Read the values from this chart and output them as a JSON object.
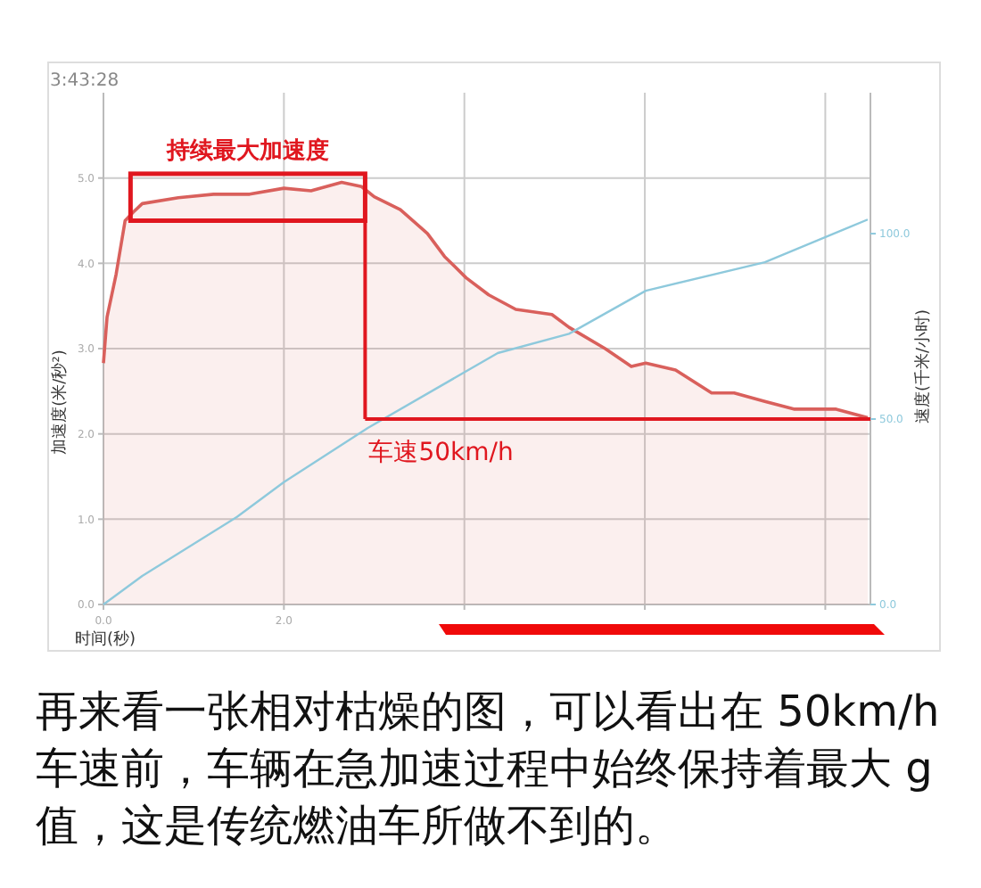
{
  "chart_data": {
    "type": "area",
    "xlabel": "时间(秒)",
    "ylabel": "加速度(米/秒²)",
    "y2label": "速度(千米/小时)",
    "xlim": [
      0,
      8.5
    ],
    "xticks": [
      {
        "value": 0,
        "label": "0.0"
      },
      {
        "value": 2,
        "label": "2.0"
      },
      {
        "value": 4,
        "label": null
      },
      {
        "value": 6,
        "label": null
      },
      {
        "value": 8,
        "label": null
      }
    ],
    "ylim": [
      0,
      6
    ],
    "yticks": [
      {
        "value": 0,
        "label": "0.0"
      },
      {
        "value": 1,
        "label": "1.0"
      },
      {
        "value": 2,
        "label": "2.0"
      },
      {
        "value": 3,
        "label": "3.0"
      },
      {
        "value": 4,
        "label": "4.0"
      },
      {
        "value": 5,
        "label": "5.0"
      }
    ],
    "y2lim": [
      0,
      138
    ],
    "y2ticks": [
      {
        "value": 0,
        "label": "0.0"
      },
      {
        "value": 50,
        "label": "50.0"
      },
      {
        "value": 100,
        "label": "100.0"
      }
    ],
    "grid": true,
    "series": [
      {
        "color": "#d9605c",
        "x": [
          0,
          0.04,
          0.14,
          0.24,
          0.33,
          0.43,
          0.83,
          1.22,
          1.62,
          2.0,
          2.3,
          2.64,
          2.86,
          3.0,
          3.29,
          3.59,
          3.78,
          4.02,
          4.27,
          4.57,
          4.97,
          5.16,
          5.56,
          5.85,
          6.01,
          6.34,
          6.74,
          6.99,
          7.33,
          7.66,
          8.12,
          8.47
        ],
        "values": [
          2.83,
          3.37,
          3.87,
          4.5,
          4.6,
          4.7,
          4.77,
          4.81,
          4.81,
          4.88,
          4.85,
          4.95,
          4.9,
          4.78,
          4.63,
          4.35,
          4.08,
          3.83,
          3.63,
          3.46,
          3.4,
          3.25,
          3.0,
          2.79,
          2.83,
          2.75,
          2.48,
          2.48,
          2.38,
          2.29,
          2.29,
          2.19
        ]
      },
      {
        "type": "line",
        "axis": "y2",
        "color": "#8ec9dc",
        "x": [
          0,
          0.43,
          1.48,
          2.0,
          2.93,
          4.37,
          5.16,
          6.01,
          7.33,
          8.47
        ],
        "values": [
          0,
          7.7,
          23.6,
          33,
          47.6,
          67.8,
          73,
          84.6,
          92.3,
          103.8
        ]
      }
    ],
    "ref_lines": [
      {
        "axis": "x",
        "value": 2.9,
        "color": "#e0171f"
      },
      {
        "axis": "y2",
        "value": 50,
        "label": "车速50km/h",
        "color": "#e0171f"
      }
    ],
    "annotations": [
      "3:43:28",
      "持续最大加速度",
      "再来看一张相对枯燥的图，可以看出在 50km/h 车速前，车辆在急加速过程中始终保持着最大 g 值，这是传统燃油车所做不到的。"
    ]
  }
}
